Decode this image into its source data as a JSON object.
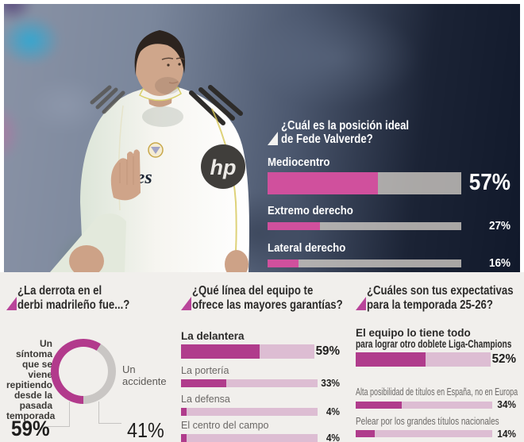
{
  "colors": {
    "accent_pink_bright": "#d0509d",
    "accent_magenta": "#b03c8c",
    "track_light_pink": "#ddbdd3",
    "track_overlay_gray": "rgba(206,201,195,0.8)",
    "donut_gray": "#c9c6c4",
    "page_bg": "#f1efec",
    "title_marker_pink": "#b9459a",
    "text_dark": "#2c2b2a",
    "text_gray": "#6b6866"
  },
  "photo": {
    "sleeve_badge_text": "hp",
    "shirt_sponsor_fragment": "tes"
  },
  "chart_data": [
    {
      "id": "posicion-ideal",
      "type": "bar",
      "orientation": "horizontal",
      "title": "¿Cuál es la posición ideal de Fede Valverde?",
      "title_lines": [
        "¿Cuál es la posición ideal",
        "de Fede Valverde?"
      ],
      "categories": [
        "Mediocentro",
        "Extremo derecho",
        "Lateral derecho"
      ],
      "values": [
        57,
        27,
        16
      ],
      "value_labels": [
        "57%",
        "27%",
        "16%"
      ],
      "xlim": [
        0,
        100
      ],
      "grid": false,
      "legend_position": "none",
      "highlight_first": true,
      "bar_color": "#d0509d",
      "track_color": "rgba(206,201,195,0.8)"
    },
    {
      "id": "derrota-derbi",
      "type": "pie",
      "donut": true,
      "title": "¿La derrota en el derbi madrileño fue...?",
      "title_lines": [
        "¿La derrota en el",
        "derbi madrileño fue...?"
      ],
      "slices": [
        {
          "label": "Un síntoma que se viene repitiendo desde la pasada temporada",
          "value": 59,
          "value_label": "59%",
          "color": "#b23a8c"
        },
        {
          "label": "Un accidente",
          "value": 41,
          "value_label": "41%",
          "color": "#c9c6c4"
        }
      ],
      "legend_position": "sides"
    },
    {
      "id": "linea-garantias",
      "type": "bar",
      "orientation": "horizontal",
      "title": "¿Qué línea del equipo te ofrece las mayores garantías?",
      "title_lines": [
        "¿Qué línea del equipo te",
        "ofrece las mayores garantías?"
      ],
      "categories": [
        "La delantera",
        "La portería",
        "La defensa",
        "El centro del campo"
      ],
      "values": [
        59,
        33,
        4,
        4
      ],
      "value_labels": [
        "59%",
        "33%",
        "4%",
        "4%"
      ],
      "xlim": [
        0,
        100
      ],
      "grid": false,
      "legend_position": "none",
      "highlight_first": true,
      "bar_color": "#b03c8c",
      "track_color": "#ddbdd3"
    },
    {
      "id": "expectativas-25-26",
      "type": "bar",
      "orientation": "horizontal",
      "title": "¿Cuáles son tus expectativas para la temporada 25-26?",
      "title_lines": [
        "¿Cuáles son tus expectativas",
        "para la temporada 25-26?"
      ],
      "categories": [
        "El equipo lo tiene todo para lograr otro doblete Liga-Champions",
        "Alta posibilidad de títulos en España, no en Europa",
        "Pelear por los grandes títulos nacionales"
      ],
      "category_display_lines": [
        [
          "El equipo lo tiene todo",
          "para lograr otro doblete Liga-Champions"
        ],
        [
          "Alta posibilidad de títulos en España, no en Europa"
        ],
        [
          "Pelear por los grandes títulos nacionales"
        ]
      ],
      "values": [
        52,
        34,
        14
      ],
      "value_labels": [
        "52%",
        "34%",
        "14%"
      ],
      "xlim": [
        0,
        100
      ],
      "grid": false,
      "legend_position": "none",
      "highlight_first": true,
      "bar_color": "#b03c8c",
      "track_color": "#ddbdd3"
    }
  ]
}
